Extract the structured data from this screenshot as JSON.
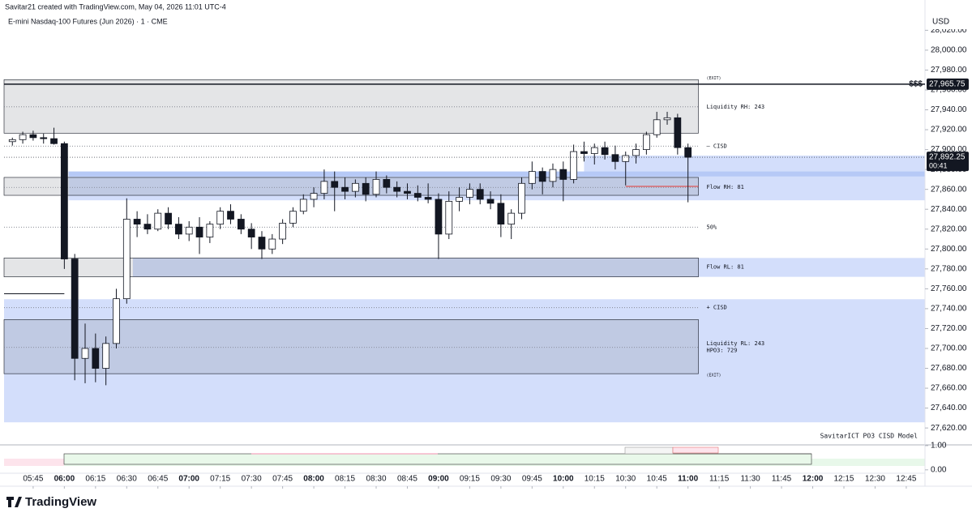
{
  "header": {
    "credit": "Savitar21 created with TradingView.com, May 04, 2026 11:01 UTC-4",
    "brand": "TradingView"
  },
  "chart_data": {
    "type": "candlestick",
    "title": "E-mini Nasdaq-100 Futures (Jun 2026) · 1 · CME",
    "currency": "USD",
    "indicator": "SavitarICT PO3 CISD Model",
    "colors": {
      "up": "#ffffff",
      "down": "#131722",
      "outline": "#131722"
    },
    "x": [
      "05:35",
      "05:40",
      "05:45",
      "05:50",
      "05:55",
      "06:00",
      "06:05",
      "06:10",
      "06:15",
      "06:20",
      "06:25",
      "06:30",
      "06:35",
      "06:40",
      "06:45",
      "06:50",
      "06:55",
      "07:00",
      "07:05",
      "07:10",
      "07:15",
      "07:20",
      "07:25",
      "07:30",
      "07:35",
      "07:40",
      "07:45",
      "07:50",
      "07:55",
      "08:00",
      "08:05",
      "08:10",
      "08:15",
      "08:20",
      "08:25",
      "08:30",
      "08:35",
      "08:40",
      "08:45",
      "08:50",
      "08:55",
      "09:00",
      "09:05",
      "09:10",
      "09:15",
      "09:20",
      "09:25",
      "09:30",
      "09:35",
      "09:40",
      "09:45",
      "09:50",
      "09:55",
      "10:00",
      "10:05",
      "10:10",
      "10:15",
      "10:20",
      "10:25",
      "10:30",
      "10:35",
      "10:40",
      "10:45",
      "10:50",
      "10:55",
      "11:00"
    ],
    "open": [
      27908,
      27910,
      27915,
      27912,
      27911,
      27906,
      27790,
      27690,
      27700,
      27680,
      27705,
      27750,
      27830,
      27825,
      27820,
      27836,
      27825,
      27815,
      27822,
      27812,
      27825,
      27838,
      27830,
      27820,
      27812,
      27800,
      27810,
      27826,
      27838,
      27850,
      27856,
      27868,
      27862,
      27858,
      27866,
      27855,
      27870,
      27862,
      27858,
      27856,
      27852,
      27850,
      27815,
      27848,
      27852,
      27860,
      27850,
      27846,
      27825,
      27836,
      27866,
      27878,
      27868,
      27880,
      27870,
      27898,
      27896,
      27902,
      27895,
      27888,
      27894,
      27900,
      27915,
      27930,
      27932,
      27902
    ],
    "high": [
      27912,
      27918,
      27919,
      27916,
      27922,
      27908,
      27795,
      27725,
      27715,
      27712,
      27760,
      27851,
      27838,
      27835,
      27840,
      27842,
      27832,
      27828,
      27832,
      27828,
      27842,
      27845,
      27835,
      27826,
      27818,
      27815,
      27830,
      27842,
      27855,
      27862,
      27880,
      27878,
      27872,
      27870,
      27872,
      27878,
      27874,
      27868,
      27866,
      27864,
      27866,
      27856,
      27858,
      27862,
      27866,
      27866,
      27858,
      27855,
      27840,
      27872,
      27888,
      27882,
      27886,
      27888,
      27905,
      27908,
      27906,
      27908,
      27904,
      27898,
      27906,
      27918,
      27938,
      27938,
      27936,
      27906
    ],
    "low": [
      27904,
      27906,
      27909,
      27906,
      27905,
      27780,
      27668,
      27665,
      27666,
      27663,
      27700,
      27745,
      27812,
      27815,
      27818,
      27820,
      27810,
      27808,
      27795,
      27806,
      27820,
      27825,
      27815,
      27800,
      27790,
      27795,
      27805,
      27822,
      27835,
      27842,
      27850,
      27838,
      27850,
      27852,
      27848,
      27852,
      27856,
      27852,
      27850,
      27848,
      27846,
      27790,
      27810,
      27838,
      27845,
      27845,
      27840,
      27812,
      27810,
      27830,
      27860,
      27855,
      27862,
      27848,
      27866,
      27888,
      27885,
      27890,
      27880,
      27864,
      27886,
      27895,
      27912,
      27925,
      27895,
      27847
    ],
    "close": [
      27910,
      27915,
      27912,
      27911,
      27906,
      27790,
      27690,
      27700,
      27680,
      27705,
      27750,
      27830,
      27825,
      27820,
      27836,
      27825,
      27815,
      27822,
      27812,
      27825,
      27838,
      27830,
      27820,
      27812,
      27800,
      27810,
      27826,
      27838,
      27850,
      27856,
      27868,
      27862,
      27858,
      27866,
      27855,
      27870,
      27862,
      27858,
      27856,
      27852,
      27850,
      27815,
      27848,
      27852,
      27860,
      27850,
      27846,
      27825,
      27836,
      27866,
      27878,
      27868,
      27880,
      27870,
      27898,
      27896,
      27902,
      27895,
      27888,
      27894,
      27900,
      27915,
      27930,
      27932,
      27902,
      27892.25
    ],
    "xlim": [
      "05:31",
      "12:54"
    ],
    "xticks": [
      "05:45",
      "06:00",
      "06:15",
      "06:30",
      "06:45",
      "07:00",
      "07:15",
      "07:30",
      "07:45",
      "08:00",
      "08:15",
      "08:30",
      "08:45",
      "09:00",
      "09:15",
      "09:30",
      "09:45",
      "10:00",
      "10:15",
      "10:30",
      "10:45",
      "11:00",
      "11:15",
      "11:30",
      "11:45",
      "12:00",
      "12:15",
      "12:30",
      "12:45"
    ],
    "ylim": [
      27603,
      28026
    ],
    "yticks": [
      {
        "value": 28020,
        "label": "28,020.00"
      },
      {
        "value": 28000,
        "label": "28,000.00"
      },
      {
        "value": 27980,
        "label": "27,980.00"
      },
      {
        "value": 27960,
        "label": "27,960.00"
      },
      {
        "value": 27940,
        "label": "27,940.00"
      },
      {
        "value": 27920,
        "label": "27,920.00"
      },
      {
        "value": 27900,
        "label": "27,900.00"
      },
      {
        "value": 27880,
        "label": "27,880.00"
      },
      {
        "value": 27860,
        "label": "27,860.00"
      },
      {
        "value": 27840,
        "label": "27,840.00"
      },
      {
        "value": 27820,
        "label": "27,820.00"
      },
      {
        "value": 27800,
        "label": "27,800.00"
      },
      {
        "value": 27780,
        "label": "27,780.00"
      },
      {
        "value": 27760,
        "label": "27,760.00"
      },
      {
        "value": 27740,
        "label": "27,740.00"
      },
      {
        "value": 27720,
        "label": "27,720.00"
      },
      {
        "value": 27700,
        "label": "27,700.00"
      },
      {
        "value": 27680,
        "label": "27,680.00"
      },
      {
        "value": 27660,
        "label": "27,660.00"
      },
      {
        "value": 27640,
        "label": "27,640.00"
      },
      {
        "value": 27620,
        "label": "27,620.00"
      }
    ],
    "zones": [
      {
        "top": 27970.3,
        "bottom": 27916.5,
        "start": "05:31",
        "end": "11:05",
        "color": "#787b8633"
      },
      {
        "top": 27876,
        "bottom": 27849,
        "start": "06:02",
        "end": "12:54",
        "color": "#d3defb"
      },
      {
        "top": 27894,
        "bottom": 27876,
        "start": "10:10",
        "end": "12:54",
        "color": "#d3defb"
      },
      {
        "top": 27878,
        "bottom": 27873,
        "start": "06:02",
        "end": "12:54",
        "color": "#b6c9f6"
      },
      {
        "top": 27872,
        "bottom": 27854,
        "start": "05:31",
        "end": "11:05",
        "color": "#787b8633"
      },
      {
        "top": 27791,
        "bottom": 27772,
        "start": "06:33",
        "end": "12:54",
        "color": "#d3defb"
      },
      {
        "top": 27791,
        "bottom": 27772,
        "start": "05:31",
        "end": "11:05",
        "color": "#787b8633"
      },
      {
        "top": 27749.5,
        "bottom": 27625.7,
        "start": "05:31",
        "end": "12:54",
        "color": "#d3defb"
      },
      {
        "top": 27729,
        "bottom": 27674.6,
        "start": "05:31",
        "end": "11:05",
        "color": "#787b8633"
      }
    ],
    "levels": [
      {
        "price": 27943,
        "start": "05:31",
        "end": "11:05",
        "color": "#787b86",
        "style": "dotted"
      },
      {
        "price": 27903.5,
        "start": "05:31",
        "end": "11:05",
        "color": "#787b86",
        "style": "dotted"
      },
      {
        "price": 27862,
        "start": "05:31",
        "end": "11:05",
        "color": "#787b86",
        "style": "dotted"
      },
      {
        "price": 27822,
        "start": "05:31",
        "end": "11:05",
        "color": "#787b86",
        "style": "dotted"
      },
      {
        "price": 27741,
        "start": "05:31",
        "end": "11:05",
        "color": "#787b86",
        "style": "dotted"
      },
      {
        "price": 27701,
        "start": "05:31",
        "end": "11:05",
        "color": "#787b86",
        "style": "dotted"
      },
      {
        "price": 27755,
        "start": "05:31",
        "end": "06:00",
        "color": "#131722",
        "style": "solid"
      },
      {
        "price": 27863,
        "start": "10:30",
        "end": "11:05",
        "color": "#e53935",
        "style": "solid"
      }
    ],
    "annotations": [
      {
        "text": "(EXIT)",
        "price": 27972
      },
      {
        "text": "Liquidity RH: 243",
        "price": 27943
      },
      {
        "text": "– CISD",
        "price": 27903.5
      },
      {
        "text": "Flow RH: 81",
        "price": 27862
      },
      {
        "text": "50%",
        "price": 27822
      },
      {
        "text": "Flow RL: 81",
        "price": 27782
      },
      {
        "text": "+ CISD",
        "price": 27741
      },
      {
        "text": "Liquidity RL: 243",
        "price": 27705
      },
      {
        "text": "HPO3: 729",
        "price": 27698
      },
      {
        "text": "(EXIT)",
        "price": 27673
      }
    ],
    "target": {
      "label": "$$$",
      "value": 27965.75,
      "value_label": "27,965.75"
    },
    "last_price": {
      "value": 27892.25,
      "value_label": "27,892.25",
      "countdown": "00:41"
    },
    "sub_pane": {
      "ylim": [
        -0.14,
        1.03
      ],
      "yticks": [
        {
          "value": 1,
          "label": "1.00"
        },
        {
          "value": 0,
          "label": "0.00"
        }
      ]
    }
  }
}
